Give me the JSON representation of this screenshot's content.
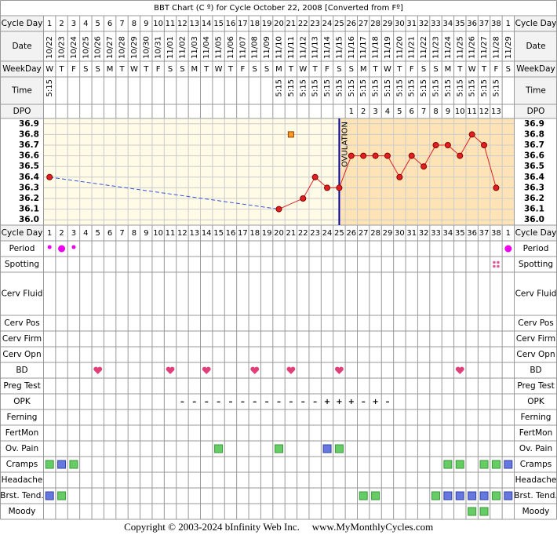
{
  "title": "BBT Chart (C º) for Cycle October 22, 2008  [Converted from Fº]",
  "row_labels": {
    "cycle_day": "Cycle Day",
    "date": "Date",
    "weekday": "WeekDay",
    "time": "Time",
    "dpo": "DPO"
  },
  "days": [
    {
      "cd": 1,
      "date": "10/22",
      "wd": "W",
      "time": "5:15",
      "dpo": null
    },
    {
      "cd": 2,
      "date": "10/23",
      "wd": "T",
      "time": null,
      "dpo": null
    },
    {
      "cd": 3,
      "date": "10/24",
      "wd": "F",
      "time": null,
      "dpo": null
    },
    {
      "cd": 4,
      "date": "10/25",
      "wd": "S",
      "time": null,
      "dpo": null
    },
    {
      "cd": 5,
      "date": "10/26",
      "wd": "S",
      "time": null,
      "dpo": null
    },
    {
      "cd": 6,
      "date": "10/27",
      "wd": "M",
      "time": null,
      "dpo": null
    },
    {
      "cd": 7,
      "date": "10/28",
      "wd": "T",
      "time": null,
      "dpo": null
    },
    {
      "cd": 8,
      "date": "10/29",
      "wd": "W",
      "time": null,
      "dpo": null
    },
    {
      "cd": 9,
      "date": "10/30",
      "wd": "T",
      "time": null,
      "dpo": null
    },
    {
      "cd": 10,
      "date": "10/31",
      "wd": "F",
      "time": null,
      "dpo": null
    },
    {
      "cd": 11,
      "date": "11/01",
      "wd": "S",
      "time": null,
      "dpo": null
    },
    {
      "cd": 12,
      "date": "11/02",
      "wd": "S",
      "time": null,
      "dpo": null
    },
    {
      "cd": 13,
      "date": "11/03",
      "wd": "M",
      "time": null,
      "dpo": null
    },
    {
      "cd": 14,
      "date": "11/04",
      "wd": "T",
      "time": null,
      "dpo": null
    },
    {
      "cd": 15,
      "date": "11/05",
      "wd": "W",
      "time": null,
      "dpo": null
    },
    {
      "cd": 16,
      "date": "11/06",
      "wd": "T",
      "time": null,
      "dpo": null
    },
    {
      "cd": 17,
      "date": "11/07",
      "wd": "F",
      "time": null,
      "dpo": null
    },
    {
      "cd": 18,
      "date": "11/08",
      "wd": "S",
      "time": null,
      "dpo": null
    },
    {
      "cd": 19,
      "date": "11/09",
      "wd": "S",
      "time": null,
      "dpo": null
    },
    {
      "cd": 20,
      "date": "11/10",
      "wd": "M",
      "time": "5:15",
      "dpo": null
    },
    {
      "cd": 21,
      "date": "11/11",
      "wd": "T",
      "time": "5:15",
      "dpo": null
    },
    {
      "cd": 22,
      "date": "11/12",
      "wd": "W",
      "time": "5:15",
      "dpo": null
    },
    {
      "cd": 23,
      "date": "11/13",
      "wd": "T",
      "time": "5:15",
      "dpo": null
    },
    {
      "cd": 24,
      "date": "11/14",
      "wd": "F",
      "time": "5:15",
      "dpo": null
    },
    {
      "cd": 25,
      "date": "11/15",
      "wd": "S",
      "time": "5:15",
      "dpo": null
    },
    {
      "cd": 26,
      "date": "11/16",
      "wd": "S",
      "time": "5:15",
      "dpo": 1
    },
    {
      "cd": 27,
      "date": "11/17",
      "wd": "M",
      "time": "5:15",
      "dpo": 2
    },
    {
      "cd": 28,
      "date": "11/18",
      "wd": "T",
      "time": "5:15",
      "dpo": 3
    },
    {
      "cd": 29,
      "date": "11/19",
      "wd": "W",
      "time": "5:15",
      "dpo": 4
    },
    {
      "cd": 30,
      "date": "11/20",
      "wd": "T",
      "time": "5:15",
      "dpo": 5
    },
    {
      "cd": 31,
      "date": "11/21",
      "wd": "F",
      "time": "5:15",
      "dpo": 6
    },
    {
      "cd": 32,
      "date": "11/22",
      "wd": "S",
      "time": "5:15",
      "dpo": 7
    },
    {
      "cd": 33,
      "date": "11/23",
      "wd": "S",
      "time": "5:15",
      "dpo": 8
    },
    {
      "cd": 34,
      "date": "11/24",
      "wd": "M",
      "time": "5:15",
      "dpo": 9
    },
    {
      "cd": 35,
      "date": "11/25",
      "wd": "T",
      "time": "5:15",
      "dpo": 10
    },
    {
      "cd": 36,
      "date": "11/26",
      "wd": "W",
      "time": "5:15",
      "dpo": 11
    },
    {
      "cd": 37,
      "date": "11/27",
      "wd": "T",
      "time": "5:15",
      "dpo": 12
    },
    {
      "cd": 38,
      "date": "11/28",
      "wd": "F",
      "time": "5:15",
      "dpo": 13
    },
    {
      "cd": 1,
      "date": "11/29",
      "wd": "S",
      "time": null,
      "dpo": null
    }
  ],
  "chart_data": {
    "type": "line",
    "color": "#e02020",
    "gap_color": "#3355dd",
    "background": "#fffbe6",
    "luteal_background": "#fde3b5",
    "values": [
      36.4,
      null,
      null,
      null,
      null,
      null,
      null,
      null,
      null,
      null,
      null,
      null,
      null,
      null,
      null,
      null,
      null,
      null,
      null,
      36.1,
      null,
      36.2,
      36.4,
      36.3,
      36.3,
      36.6,
      36.6,
      36.6,
      36.6,
      36.4,
      36.6,
      36.5,
      36.7,
      36.7,
      36.6,
      36.8,
      36.7,
      36.3,
      null
    ],
    "excluded": [
      {
        "col": 20,
        "value": 36.8
      }
    ],
    "ovulation_col": 24,
    "ovulation_label": "OVULATION",
    "ylim": [
      35.95,
      36.95
    ],
    "yticks": [
      36.9,
      36.8,
      36.7,
      36.6,
      36.5,
      36.4,
      36.3,
      36.2,
      36.1,
      {
        "value": 36,
        "label": "36.0"
      }
    ],
    "grid": true
  },
  "symbol_rows": [
    {
      "label": "Period",
      "marks": [
        {
          "col": 0,
          "mark": "dot-small"
        },
        {
          "col": 1,
          "mark": "dot-big"
        },
        {
          "col": 2,
          "mark": "dot-small"
        },
        {
          "col": 38,
          "mark": "dot-big"
        }
      ]
    },
    {
      "label": "Spotting",
      "marks": [
        {
          "col": 37,
          "mark": "spots"
        }
      ]
    },
    {
      "label": "Cerv Fluid",
      "marks": []
    },
    {
      "label": "Cerv Pos",
      "marks": []
    },
    {
      "label": "Cerv Firm",
      "marks": []
    },
    {
      "label": "Cerv Opn",
      "marks": []
    },
    {
      "label": "BD",
      "marks": [
        {
          "col": 4,
          "mark": "heart"
        },
        {
          "col": 10,
          "mark": "heart"
        },
        {
          "col": 13,
          "mark": "heart"
        },
        {
          "col": 17,
          "mark": "heart"
        },
        {
          "col": 20,
          "mark": "heart"
        },
        {
          "col": 24,
          "mark": "heart"
        },
        {
          "col": 34,
          "mark": "heart"
        }
      ]
    },
    {
      "label": "Preg Test",
      "marks": []
    },
    {
      "label": "OPK",
      "marks": [
        {
          "col": 11,
          "text": "–"
        },
        {
          "col": 12,
          "text": "–"
        },
        {
          "col": 13,
          "text": "–"
        },
        {
          "col": 14,
          "text": "–"
        },
        {
          "col": 15,
          "text": "–"
        },
        {
          "col": 16,
          "text": "–"
        },
        {
          "col": 17,
          "text": "–"
        },
        {
          "col": 18,
          "text": "–"
        },
        {
          "col": 19,
          "text": "–"
        },
        {
          "col": 20,
          "text": "–"
        },
        {
          "col": 21,
          "text": "–"
        },
        {
          "col": 22,
          "text": "–"
        },
        {
          "col": 23,
          "text": "+"
        },
        {
          "col": 24,
          "text": "+"
        },
        {
          "col": 25,
          "text": "+"
        },
        {
          "col": 26,
          "text": "–"
        },
        {
          "col": 27,
          "text": "+"
        },
        {
          "col": 28,
          "text": "–"
        }
      ]
    },
    {
      "label": "Ferning",
      "marks": []
    },
    {
      "label": "FertMon",
      "marks": []
    },
    {
      "label": "Ov. Pain",
      "marks": [
        {
          "col": 14,
          "mark": "green"
        },
        {
          "col": 19,
          "mark": "green"
        },
        {
          "col": 23,
          "mark": "blue"
        },
        {
          "col": 24,
          "mark": "green"
        }
      ]
    },
    {
      "label": "Cramps",
      "marks": [
        {
          "col": 0,
          "mark": "green"
        },
        {
          "col": 1,
          "mark": "blue"
        },
        {
          "col": 2,
          "mark": "green"
        },
        {
          "col": 33,
          "mark": "green"
        },
        {
          "col": 34,
          "mark": "green"
        },
        {
          "col": 36,
          "mark": "green"
        },
        {
          "col": 37,
          "mark": "green"
        },
        {
          "col": 38,
          "mark": "blue"
        }
      ]
    },
    {
      "label": "Headache",
      "marks": []
    },
    {
      "label": "Brst. Tend.",
      "marks": [
        {
          "col": 0,
          "mark": "blue"
        },
        {
          "col": 1,
          "mark": "green"
        },
        {
          "col": 26,
          "mark": "green"
        },
        {
          "col": 27,
          "mark": "green"
        },
        {
          "col": 32,
          "mark": "green"
        },
        {
          "col": 33,
          "mark": "blue"
        },
        {
          "col": 34,
          "mark": "blue"
        },
        {
          "col": 35,
          "mark": "blue"
        },
        {
          "col": 36,
          "mark": "blue"
        },
        {
          "col": 37,
          "mark": "green"
        },
        {
          "col": 38,
          "mark": "blue"
        }
      ]
    },
    {
      "label": "Moody",
      "marks": [
        {
          "col": 35,
          "mark": "green"
        },
        {
          "col": 36,
          "mark": "green"
        }
      ]
    }
  ],
  "footer": {
    "copyright": "Copyright © 2003-2024 bInfinity Web Inc.",
    "site": "www.MyMonthlyCycles.com"
  }
}
